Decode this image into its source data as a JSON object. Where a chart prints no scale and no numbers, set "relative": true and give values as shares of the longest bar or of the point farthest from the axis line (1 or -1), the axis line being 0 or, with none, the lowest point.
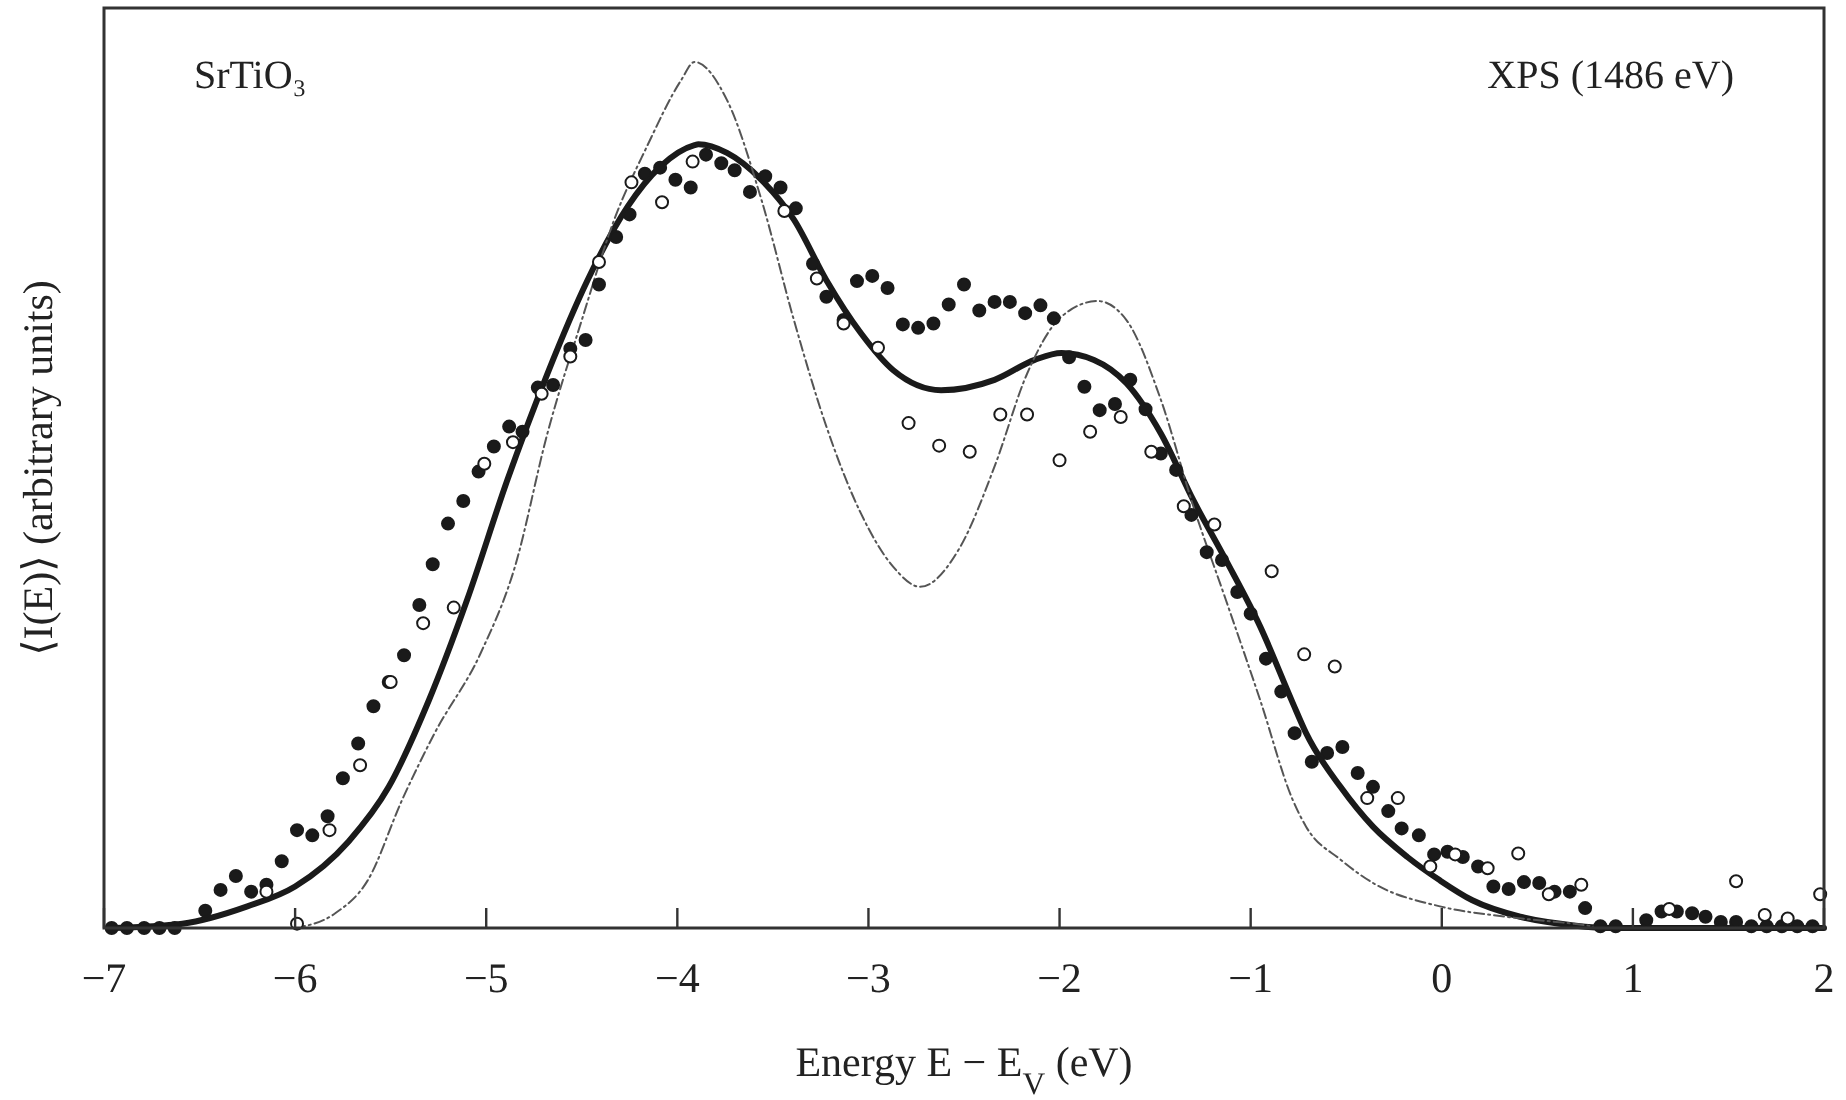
{
  "chart_data": {
    "type": "scatter",
    "xlabel": "Energy E − E$_{V}$ (eV)",
    "ylabel": "⟨I(E)⟩ (arbitrary units)",
    "annotations": [
      "SrTiO₃",
      "XPS (1486 eV)"
    ],
    "relative": true,
    "tick_labels": "x",
    "grid": false,
    "xlim": [
      -7,
      2
    ],
    "xticks": [
      {
        "value": -7,
        "label": "−7"
      },
      {
        "value": -6,
        "label": "−6"
      },
      {
        "value": -5,
        "label": "−5"
      },
      {
        "value": -4,
        "label": "−4"
      },
      {
        "value": -3,
        "label": "−3"
      },
      {
        "value": -2,
        "label": "−2"
      },
      {
        "value": -1,
        "label": "−1"
      },
      0,
      1,
      2
    ],
    "series": [
      {
        "marker": "circle",
        "color": "#1a1a1a",
        "x": [
          -6.96,
          -6.88,
          -6.79,
          -6.71,
          -6.63,
          -6.47,
          -6.39,
          -6.31,
          -6.23,
          -6.15,
          -6.07,
          -5.99,
          -5.91,
          -5.83,
          -5.75,
          -5.67,
          -5.59,
          -5.51,
          -5.43,
          -5.35,
          -5.28,
          -5.2,
          -5.12,
          -5.04,
          -4.96,
          -4.88,
          -4.81,
          -4.73,
          -4.65,
          -4.56,
          -4.48,
          -4.41,
          -4.32,
          -4.25,
          -4.17,
          -4.09,
          -4.01,
          -3.93,
          -3.85,
          -3.77,
          -3.7,
          -3.62,
          -3.54,
          -3.46,
          -3.38,
          -3.29,
          -3.22,
          -3.13,
          -3.06,
          -2.98,
          -2.9,
          -2.82,
          -2.74,
          -2.66,
          -2.58,
          -2.5,
          -2.42,
          -2.34,
          -2.26,
          -2.18,
          -2.1,
          -2.03,
          -1.95,
          -1.87,
          -1.79,
          -1.71,
          -1.63,
          -1.55,
          -1.47,
          -1.39,
          -1.31,
          -1.23,
          -1.15,
          -1.07,
          -1,
          -0.92,
          -0.84,
          -0.77,
          -0.68,
          -0.6,
          -0.52,
          -0.44,
          -0.36,
          -0.28,
          -0.21,
          -0.12,
          -0.04,
          0.03,
          0.11,
          0.19,
          0.27,
          0.35,
          0.43,
          0.51,
          0.59,
          0.67,
          0.75,
          0.83,
          0.91,
          1.07,
          1.15,
          1.23,
          1.31,
          1.38,
          1.46,
          1.54,
          1.62,
          1.7,
          1.78,
          1.86,
          1.94
        ],
        "values": [
          0,
          0,
          0,
          0,
          0,
          0.02,
          0.044,
          0.06,
          0.042,
          0.05,
          0.077,
          0.113,
          0.107,
          0.129,
          0.173,
          0.213,
          0.256,
          0.284,
          0.315,
          0.373,
          0.42,
          0.467,
          0.493,
          0.527,
          0.556,
          0.579,
          0.573,
          0.624,
          0.627,
          0.669,
          0.679,
          0.743,
          0.798,
          0.824,
          0.871,
          0.878,
          0.864,
          0.855,
          0.893,
          0.883,
          0.875,
          0.85,
          0.868,
          0.855,
          0.831,
          0.767,
          0.729,
          0.702,
          0.747,
          0.753,
          0.739,
          0.697,
          0.693,
          0.698,
          0.72,
          0.743,
          0.713,
          0.723,
          0.723,
          0.71,
          0.719,
          0.704,
          0.659,
          0.625,
          0.598,
          0.605,
          0.633,
          0.599,
          0.548,
          0.529,
          0.477,
          0.434,
          0.425,
          0.388,
          0.363,
          0.311,
          0.273,
          0.225,
          0.192,
          0.202,
          0.209,
          0.179,
          0.163,
          0.135,
          0.115,
          0.107,
          0.085,
          0.088,
          0.082,
          0.071,
          0.048,
          0.045,
          0.053,
          0.052,
          0.042,
          0.042,
          0.023,
          0.002,
          0.002,
          0.009,
          0.019,
          0.019,
          0.017,
          0.013,
          0.007,
          0.007,
          0.002,
          0.002,
          0.002,
          0.002,
          0.002
        ]
      },
      {
        "marker": "circle",
        "color": "#1a1a1a",
        "x": [
          -6.15,
          -5.99,
          -5.82,
          -5.66,
          -5.5,
          -5.33,
          -5.17,
          -5.01,
          -4.86,
          -4.71,
          -4.56,
          -4.41,
          -4.24,
          -4.08,
          -3.92,
          -3.44,
          -3.27,
          -3.13,
          -2.95,
          -2.79,
          -2.63,
          -2.47,
          -2.31,
          -2.17,
          -2,
          -1.84,
          -1.68,
          -1.52,
          -1.35,
          -1.19,
          -0.89,
          -0.72,
          -0.56,
          -0.39,
          -0.23,
          -0.06,
          0.07,
          0.24,
          0.4,
          0.56,
          0.73,
          1.19,
          1.54,
          1.69,
          1.81,
          1.98
        ],
        "values": [
          0.042,
          0.005,
          0.113,
          0.188,
          0.284,
          0.352,
          0.37,
          0.536,
          0.561,
          0.617,
          0.66,
          0.769,
          0.861,
          0.838,
          0.885,
          0.828,
          0.75,
          0.698,
          0.67,
          0.583,
          0.557,
          0.55,
          0.593,
          0.593,
          0.54,
          0.573,
          0.59,
          0.55,
          0.487,
          0.466,
          0.412,
          0.316,
          0.302,
          0.15,
          0.15,
          0.071,
          0.085,
          0.069,
          0.086,
          0.039,
          0.05,
          0.022,
          0.054,
          0.015,
          0.011,
          0.039
        ]
      },
      {
        "type": "line",
        "color": "#1a1a1a",
        "line_style": "solid",
        "x": [
          -6.96,
          -6.59,
          -6.25,
          -6,
          -5.72,
          -5.51,
          -5.3,
          -5.1,
          -4.89,
          -4.68,
          -4.47,
          -4.26,
          -4.09,
          -3.91,
          -3.89,
          -3.74,
          -3.56,
          -3.39,
          -3.22,
          -3.04,
          -2.87,
          -2.62,
          -2.34,
          -2.13,
          -1.99,
          -1.82,
          -1.65,
          -1.47,
          -1.3,
          -1.13,
          -0.95,
          -0.78,
          -0.71,
          -0.53,
          -0.36,
          -0.18,
          -0.01,
          0.16,
          0.41,
          0.69,
          0.89,
          2
        ],
        "values": [
          0,
          0.005,
          0.025,
          0.048,
          0.1,
          0.163,
          0.263,
          0.379,
          0.517,
          0.64,
          0.748,
          0.833,
          0.879,
          0.904,
          0.905,
          0.895,
          0.864,
          0.818,
          0.748,
          0.687,
          0.644,
          0.621,
          0.633,
          0.656,
          0.664,
          0.656,
          0.629,
          0.571,
          0.494,
          0.425,
          0.348,
          0.26,
          0.225,
          0.163,
          0.117,
          0.082,
          0.055,
          0.032,
          0.013,
          0.003,
          0,
          0
        ]
      },
      {
        "type": "line",
        "color": "#555555",
        "line_style": "dashed",
        "x": [
          -6,
          -5.79,
          -5.62,
          -5.44,
          -5.27,
          -5.03,
          -4.85,
          -4.68,
          -4.5,
          -4.33,
          -4.16,
          -3.98,
          -3.91,
          -3.74,
          -3.56,
          -3.39,
          -3.22,
          -3.04,
          -2.87,
          -2.73,
          -2.52,
          -2.34,
          -2.17,
          -1.99,
          -1.8,
          -1.65,
          -1.47,
          -1.3,
          -1.13,
          -0.95,
          -0.78,
          -0.71,
          -0.53,
          -0.36,
          -0.01,
          0.34,
          0.69,
          0.89,
          2
        ],
        "values": [
          0,
          0.017,
          0.055,
          0.148,
          0.225,
          0.317,
          0.417,
          0.571,
          0.702,
          0.818,
          0.902,
          0.979,
          1,
          0.956,
          0.841,
          0.702,
          0.579,
          0.479,
          0.417,
          0.394,
          0.44,
          0.533,
          0.64,
          0.706,
          0.724,
          0.702,
          0.61,
          0.487,
          0.379,
          0.263,
          0.148,
          0.117,
          0.079,
          0.052,
          0.025,
          0.013,
          0.005,
          0,
          0
        ]
      }
    ]
  }
}
